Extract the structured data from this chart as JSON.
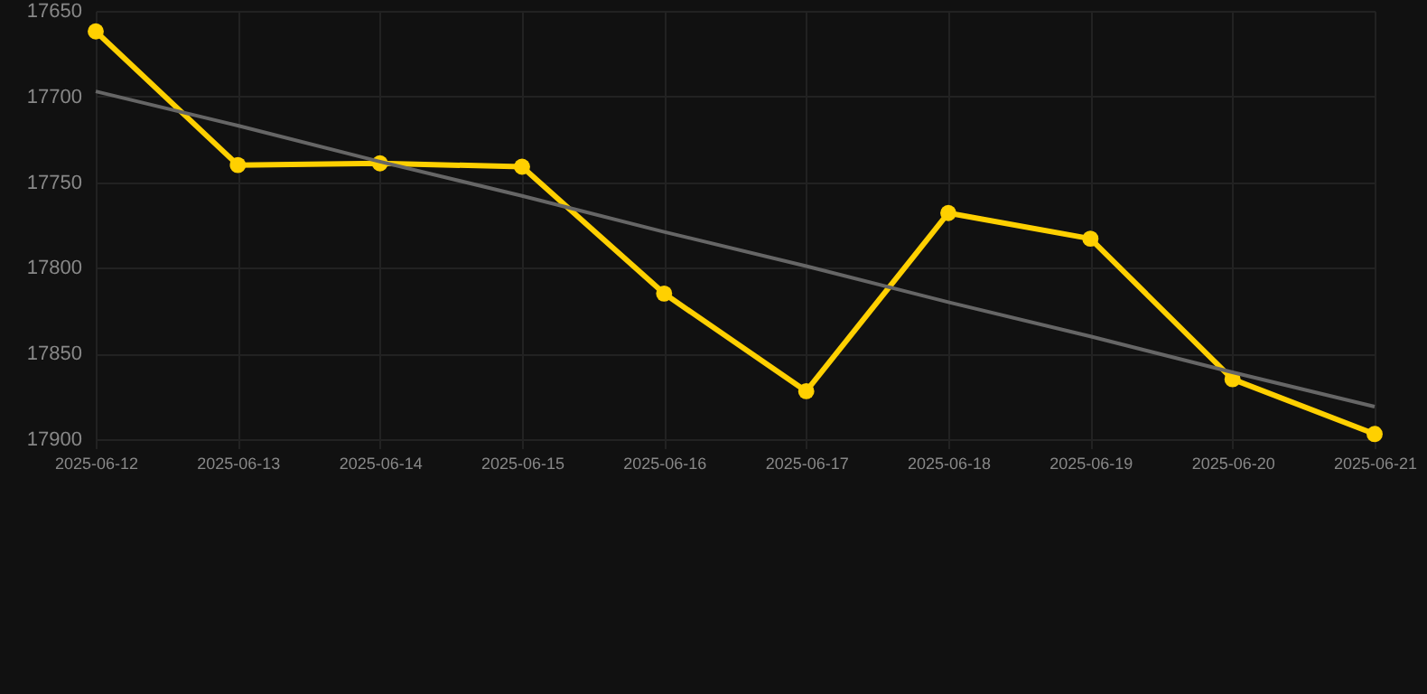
{
  "chart_data": {
    "type": "line",
    "categories": [
      "2025-06-12",
      "2025-06-13",
      "2025-06-14",
      "2025-06-15",
      "2025-06-16",
      "2025-06-17",
      "2025-06-18",
      "2025-06-19",
      "2025-06-20",
      "2025-06-21"
    ],
    "series": [
      {
        "color": "#ffd000",
        "marker": "circle",
        "values": [
          17662,
          17740,
          17739,
          17741,
          17815,
          17872,
          17768,
          17783,
          17865,
          17897
        ]
      },
      {
        "type": "line",
        "color": "#666666",
        "marker": "none",
        "values": [
          17697,
          17717,
          17738,
          17758,
          17779,
          17799,
          17820,
          17840,
          17861,
          17881
        ]
      }
    ],
    "ylim": [
      17900,
      17650
    ],
    "yticks": [
      17650,
      17700,
      17750,
      17800,
      17850,
      17900
    ],
    "grid": true,
    "line_style": "solid"
  }
}
